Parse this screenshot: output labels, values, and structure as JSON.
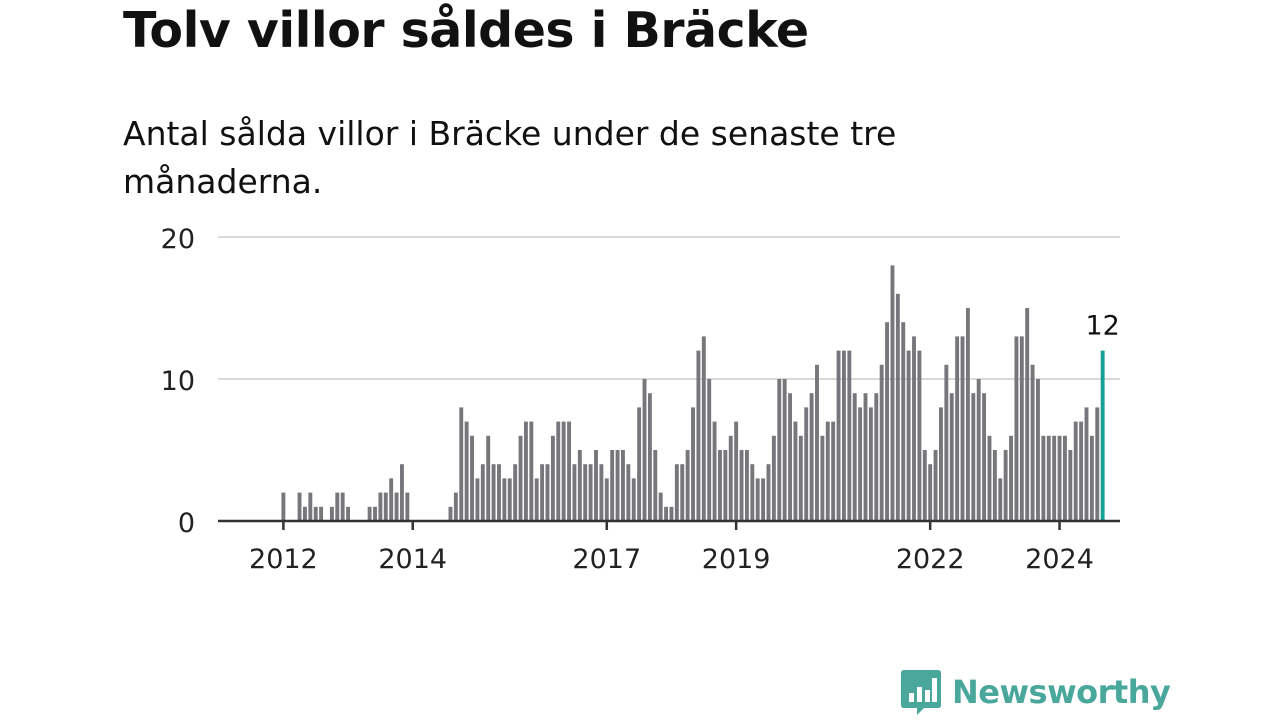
{
  "title": "Tolv villor såldes i Bräcke",
  "subtitle": "Antal sålda villor i Bräcke under de senaste tre månaderna.",
  "brand": {
    "name": "Newsworthy",
    "icon": "newsworthy-logo-icon",
    "color": "#4aa79c"
  },
  "chart_data": {
    "type": "bar",
    "start": "2011-01",
    "x_ticks": [
      "2012",
      "2014",
      "2017",
      "2019",
      "2022",
      "2024"
    ],
    "y_ticks": [
      0,
      10,
      20
    ],
    "ylim": [
      0,
      20
    ],
    "grid": true,
    "bar_color": "#77767b",
    "highlight_color": "#16a197",
    "highlight_label": "12",
    "values": [
      0,
      0,
      0,
      0,
      0,
      0,
      0,
      0,
      0,
      0,
      0,
      0,
      2,
      0,
      0,
      2,
      1,
      2,
      1,
      1,
      0,
      1,
      2,
      2,
      1,
      0,
      0,
      0,
      1,
      1,
      2,
      2,
      3,
      2,
      4,
      2,
      0,
      0,
      0,
      0,
      0,
      0,
      0,
      1,
      2,
      8,
      7,
      6,
      3,
      4,
      6,
      4,
      4,
      3,
      3,
      4,
      6,
      7,
      7,
      3,
      4,
      4,
      6,
      7,
      7,
      7,
      4,
      5,
      4,
      4,
      5,
      4,
      3,
      5,
      5,
      5,
      4,
      3,
      8,
      10,
      9,
      5,
      2,
      1,
      1,
      4,
      4,
      5,
      8,
      12,
      13,
      10,
      7,
      5,
      5,
      6,
      7,
      5,
      5,
      4,
      3,
      3,
      4,
      6,
      10,
      10,
      9,
      7,
      6,
      8,
      9,
      11,
      6,
      7,
      7,
      12,
      12,
      12,
      9,
      8,
      9,
      8,
      9,
      11,
      14,
      18,
      16,
      14,
      12,
      13,
      12,
      5,
      4,
      5,
      8,
      11,
      9,
      13,
      13,
      15,
      9,
      10,
      9,
      6,
      5,
      3,
      5,
      6,
      13,
      13,
      15,
      11,
      10,
      6,
      6,
      6,
      6,
      6,
      5,
      7,
      7,
      8,
      6,
      8,
      12
    ]
  }
}
